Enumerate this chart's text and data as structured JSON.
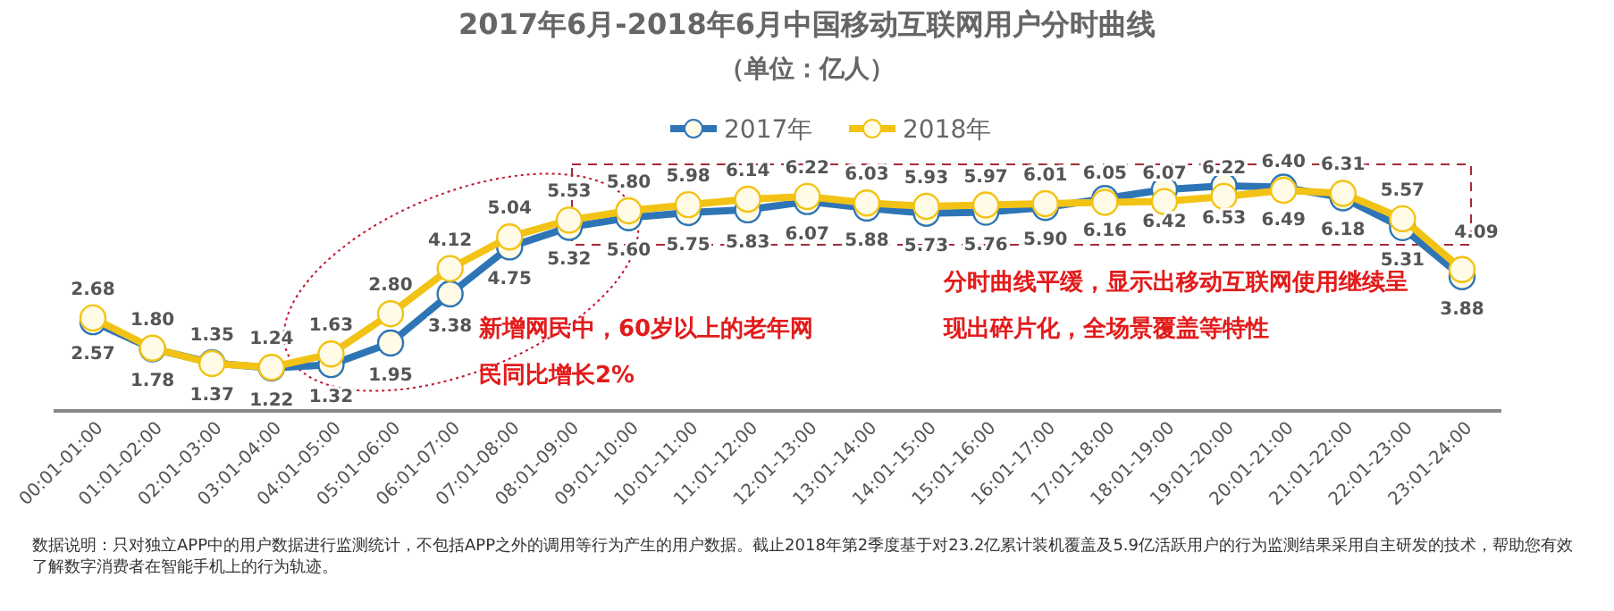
{
  "chart_data": {
    "type": "line",
    "title": "2017年6月-2018年6月中国移动互联网用户分时曲线",
    "subtitle": "（单位：亿人）",
    "categories": [
      "00:01-01:00",
      "01:01-02:00",
      "02:01-03:00",
      "03:01-04:00",
      "04:01-05:00",
      "05:01-06:00",
      "06:01-07:00",
      "07:01-08:00",
      "08:01-09:00",
      "09:01-10:00",
      "10:01-11:00",
      "11:01-12:00",
      "12:01-13:00",
      "13:01-14:00",
      "14:01-15:00",
      "15:01-16:00",
      "16:01-17:00",
      "17:01-18:00",
      "18:01-19:00",
      "19:01-20:00",
      "20:01-21:00",
      "21:01-22:00",
      "22:01-23:00",
      "23:01-24:00"
    ],
    "series": [
      {
        "name": "2017年",
        "color": "#2e75b6",
        "values": [
          2.57,
          1.78,
          1.37,
          1.22,
          1.32,
          1.95,
          3.38,
          4.75,
          5.32,
          5.6,
          5.75,
          5.83,
          6.07,
          5.88,
          5.73,
          5.76,
          5.9,
          6.16,
          6.42,
          6.53,
          6.49,
          6.18,
          5.31,
          3.88
        ],
        "value_labels": [
          "2.57",
          "1.78",
          "1.37",
          "1.22",
          "1.32",
          "1.95",
          "3.38",
          "4.75",
          "5.32",
          "5.60",
          "5.75",
          "5.83",
          "6.07",
          "5.88",
          "5.73",
          "5.76",
          "5.90",
          "6.16",
          "6.42",
          "6.53",
          "6.49",
          "6.18",
          "5.31",
          "3.88"
        ]
      },
      {
        "name": "2018年",
        "color": "#f2c314",
        "values": [
          2.68,
          1.8,
          1.35,
          1.24,
          1.63,
          2.8,
          4.12,
          5.04,
          5.53,
          5.8,
          5.98,
          6.14,
          6.22,
          6.03,
          5.93,
          5.97,
          6.01,
          6.05,
          6.07,
          6.22,
          6.4,
          6.31,
          5.57,
          4.09
        ],
        "value_labels": [
          "2.68",
          "1.80",
          "1.35",
          "1.24",
          "1.63",
          "2.80",
          "4.12",
          "5.04",
          "5.53",
          "5.80",
          "5.98",
          "6.14",
          "6.22",
          "6.03",
          "5.93",
          "5.97",
          "6.01",
          "6.05",
          "6.07",
          "6.22",
          "6.40",
          "6.31",
          "5.57",
          "4.09"
        ]
      }
    ],
    "marker": "circle",
    "legend": "top",
    "annotations": [
      "新增网民中，60岁以上的老年网民同比增长2%",
      "分时曲线平缓，显示出移动互联网使用继续呈现出碎片化，全场景覆盖等特性",
      "数据说明：只对独立APP中的用户数据进行监测统计，不包括APP之外的调用等行为产生的用户数据。截止2018年第2季度基于对23.2亿累计装机覆盖及5.9亿活跃用户的行为监测结果采用自主研发的技术，帮助您有效了解数字消费者在智能手机上的行为轨迹。"
    ]
  }
}
